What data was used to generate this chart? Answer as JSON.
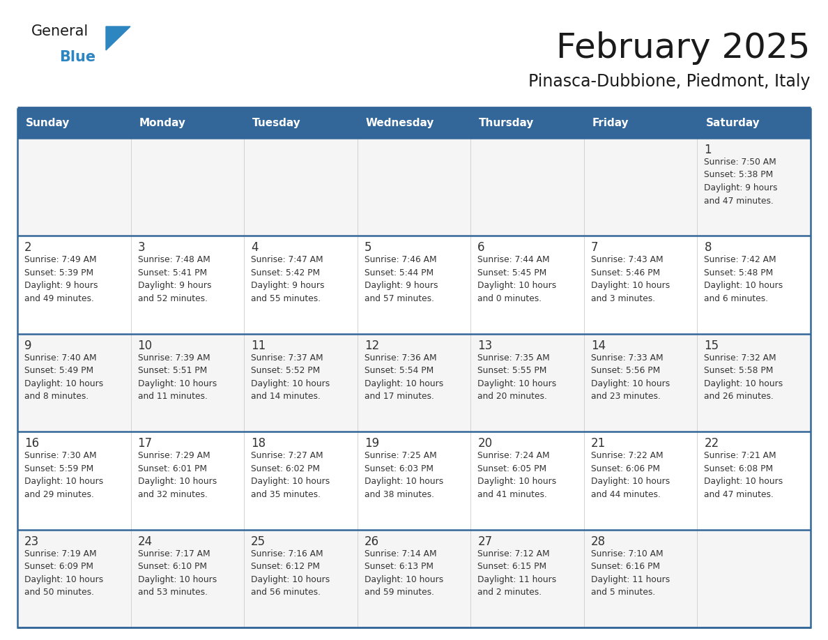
{
  "title": "February 2025",
  "subtitle": "Pinasca-Dubbione, Piedmont, Italy",
  "header_bg": "#336699",
  "header_text_color": "#FFFFFF",
  "cell_bg_odd": "#F5F5F5",
  "cell_bg_even": "#FFFFFF",
  "day_number_color": "#333333",
  "info_text_color": "#333333",
  "border_color": "#336699",
  "days_of_week": [
    "Sunday",
    "Monday",
    "Tuesday",
    "Wednesday",
    "Thursday",
    "Friday",
    "Saturday"
  ],
  "weeks": [
    [
      {
        "day": "",
        "info": ""
      },
      {
        "day": "",
        "info": ""
      },
      {
        "day": "",
        "info": ""
      },
      {
        "day": "",
        "info": ""
      },
      {
        "day": "",
        "info": ""
      },
      {
        "day": "",
        "info": ""
      },
      {
        "day": "1",
        "info": "Sunrise: 7:50 AM\nSunset: 5:38 PM\nDaylight: 9 hours\nand 47 minutes."
      }
    ],
    [
      {
        "day": "2",
        "info": "Sunrise: 7:49 AM\nSunset: 5:39 PM\nDaylight: 9 hours\nand 49 minutes."
      },
      {
        "day": "3",
        "info": "Sunrise: 7:48 AM\nSunset: 5:41 PM\nDaylight: 9 hours\nand 52 minutes."
      },
      {
        "day": "4",
        "info": "Sunrise: 7:47 AM\nSunset: 5:42 PM\nDaylight: 9 hours\nand 55 minutes."
      },
      {
        "day": "5",
        "info": "Sunrise: 7:46 AM\nSunset: 5:44 PM\nDaylight: 9 hours\nand 57 minutes."
      },
      {
        "day": "6",
        "info": "Sunrise: 7:44 AM\nSunset: 5:45 PM\nDaylight: 10 hours\nand 0 minutes."
      },
      {
        "day": "7",
        "info": "Sunrise: 7:43 AM\nSunset: 5:46 PM\nDaylight: 10 hours\nand 3 minutes."
      },
      {
        "day": "8",
        "info": "Sunrise: 7:42 AM\nSunset: 5:48 PM\nDaylight: 10 hours\nand 6 minutes."
      }
    ],
    [
      {
        "day": "9",
        "info": "Sunrise: 7:40 AM\nSunset: 5:49 PM\nDaylight: 10 hours\nand 8 minutes."
      },
      {
        "day": "10",
        "info": "Sunrise: 7:39 AM\nSunset: 5:51 PM\nDaylight: 10 hours\nand 11 minutes."
      },
      {
        "day": "11",
        "info": "Sunrise: 7:37 AM\nSunset: 5:52 PM\nDaylight: 10 hours\nand 14 minutes."
      },
      {
        "day": "12",
        "info": "Sunrise: 7:36 AM\nSunset: 5:54 PM\nDaylight: 10 hours\nand 17 minutes."
      },
      {
        "day": "13",
        "info": "Sunrise: 7:35 AM\nSunset: 5:55 PM\nDaylight: 10 hours\nand 20 minutes."
      },
      {
        "day": "14",
        "info": "Sunrise: 7:33 AM\nSunset: 5:56 PM\nDaylight: 10 hours\nand 23 minutes."
      },
      {
        "day": "15",
        "info": "Sunrise: 7:32 AM\nSunset: 5:58 PM\nDaylight: 10 hours\nand 26 minutes."
      }
    ],
    [
      {
        "day": "16",
        "info": "Sunrise: 7:30 AM\nSunset: 5:59 PM\nDaylight: 10 hours\nand 29 minutes."
      },
      {
        "day": "17",
        "info": "Sunrise: 7:29 AM\nSunset: 6:01 PM\nDaylight: 10 hours\nand 32 minutes."
      },
      {
        "day": "18",
        "info": "Sunrise: 7:27 AM\nSunset: 6:02 PM\nDaylight: 10 hours\nand 35 minutes."
      },
      {
        "day": "19",
        "info": "Sunrise: 7:25 AM\nSunset: 6:03 PM\nDaylight: 10 hours\nand 38 minutes."
      },
      {
        "day": "20",
        "info": "Sunrise: 7:24 AM\nSunset: 6:05 PM\nDaylight: 10 hours\nand 41 minutes."
      },
      {
        "day": "21",
        "info": "Sunrise: 7:22 AM\nSunset: 6:06 PM\nDaylight: 10 hours\nand 44 minutes."
      },
      {
        "day": "22",
        "info": "Sunrise: 7:21 AM\nSunset: 6:08 PM\nDaylight: 10 hours\nand 47 minutes."
      }
    ],
    [
      {
        "day": "23",
        "info": "Sunrise: 7:19 AM\nSunset: 6:09 PM\nDaylight: 10 hours\nand 50 minutes."
      },
      {
        "day": "24",
        "info": "Sunrise: 7:17 AM\nSunset: 6:10 PM\nDaylight: 10 hours\nand 53 minutes."
      },
      {
        "day": "25",
        "info": "Sunrise: 7:16 AM\nSunset: 6:12 PM\nDaylight: 10 hours\nand 56 minutes."
      },
      {
        "day": "26",
        "info": "Sunrise: 7:14 AM\nSunset: 6:13 PM\nDaylight: 10 hours\nand 59 minutes."
      },
      {
        "day": "27",
        "info": "Sunrise: 7:12 AM\nSunset: 6:15 PM\nDaylight: 11 hours\nand 2 minutes."
      },
      {
        "day": "28",
        "info": "Sunrise: 7:10 AM\nSunset: 6:16 PM\nDaylight: 11 hours\nand 5 minutes."
      },
      {
        "day": "",
        "info": ""
      }
    ]
  ],
  "logo_general_color": "#1a1a1a",
  "logo_blue_color": "#2E86C1",
  "logo_triangle_color": "#2E86C1",
  "fig_width": 11.88,
  "fig_height": 9.18,
  "dpi": 100
}
